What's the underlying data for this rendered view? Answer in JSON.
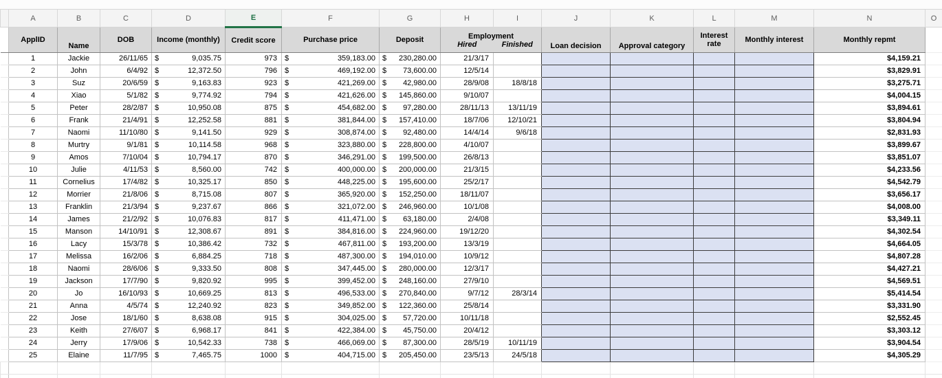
{
  "sheet": {
    "column_letters": [
      "A",
      "B",
      "C",
      "D",
      "E",
      "F",
      "G",
      "H",
      "I",
      "J",
      "K",
      "L",
      "M",
      "N",
      "O"
    ],
    "selected_column": "E",
    "colors": {
      "selection_green": "#217346",
      "header_fill": "#d9d9d9",
      "input_fill": "#dbe1f2"
    },
    "headers": {
      "applid": "ApplID",
      "name": "Name",
      "dob": "DOB",
      "income": "Income (monthly)",
      "credit": "Credit score",
      "price": "Purchase price",
      "deposit": "Deposit",
      "employment": "Employment",
      "hired": "Hired",
      "finished": "Finished",
      "loan_decision": "Loan decision",
      "approval_category": "Approval category",
      "interest_rate": "Interest rate",
      "monthly_interest": "Monthly interest",
      "monthly_repmt": "Monthly repmt"
    },
    "input_columns": [
      "loan_decision",
      "approval_category",
      "interest_rate",
      "monthly_interest"
    ],
    "rows": [
      {
        "id": "1",
        "name": "Jackie",
        "dob": "26/11/65",
        "income": "9,035.75",
        "credit": "973",
        "price": "359,183.00",
        "deposit": "230,280.00",
        "hired": "21/3/17",
        "finished": "",
        "repmt": "$4,159.21"
      },
      {
        "id": "2",
        "name": "John",
        "dob": "6/4/92",
        "income": "12,372.50",
        "credit": "796",
        "price": "469,192.00",
        "deposit": "73,600.00",
        "hired": "12/5/14",
        "finished": "",
        "repmt": "$3,829.91"
      },
      {
        "id": "3",
        "name": "Suz",
        "dob": "20/6/59",
        "income": "9,163.83",
        "credit": "923",
        "price": "421,269.00",
        "deposit": "42,980.00",
        "hired": "28/9/08",
        "finished": "18/8/18",
        "repmt": "$3,275.71"
      },
      {
        "id": "4",
        "name": "Xiao",
        "dob": "5/1/82",
        "income": "9,774.92",
        "credit": "794",
        "price": "421,626.00",
        "deposit": "145,860.00",
        "hired": "9/10/07",
        "finished": "",
        "repmt": "$4,004.15"
      },
      {
        "id": "5",
        "name": "Peter",
        "dob": "28/2/87",
        "income": "10,950.08",
        "credit": "875",
        "price": "454,682.00",
        "deposit": "97,280.00",
        "hired": "28/11/13",
        "finished": "13/11/19",
        "repmt": "$3,894.61"
      },
      {
        "id": "6",
        "name": "Frank",
        "dob": "21/4/91",
        "income": "12,252.58",
        "credit": "881",
        "price": "381,844.00",
        "deposit": "157,410.00",
        "hired": "18/7/06",
        "finished": "12/10/21",
        "repmt": "$3,804.94"
      },
      {
        "id": "7",
        "name": "Naomi",
        "dob": "11/10/80",
        "income": "9,141.50",
        "credit": "929",
        "price": "308,874.00",
        "deposit": "92,480.00",
        "hired": "14/4/14",
        "finished": "9/6/18",
        "repmt": "$2,831.93"
      },
      {
        "id": "8",
        "name": "Murtry",
        "dob": "9/1/81",
        "income": "10,114.58",
        "credit": "968",
        "price": "323,880.00",
        "deposit": "228,800.00",
        "hired": "4/10/07",
        "finished": "",
        "repmt": "$3,899.67"
      },
      {
        "id": "9",
        "name": "Amos",
        "dob": "7/10/04",
        "income": "10,794.17",
        "credit": "870",
        "price": "346,291.00",
        "deposit": "199,500.00",
        "hired": "26/8/13",
        "finished": "",
        "repmt": "$3,851.07"
      },
      {
        "id": "10",
        "name": "Julie",
        "dob": "4/11/53",
        "income": "8,560.00",
        "credit": "742",
        "price": "400,000.00",
        "deposit": "200,000.00",
        "hired": "21/3/15",
        "finished": "",
        "repmt": "$4,233.56"
      },
      {
        "id": "11",
        "name": "Cornelius",
        "dob": "17/4/82",
        "income": "10,325.17",
        "credit": "850",
        "price": "448,225.00",
        "deposit": "195,600.00",
        "hired": "25/2/17",
        "finished": "",
        "repmt": "$4,542.79"
      },
      {
        "id": "12",
        "name": "Morrier",
        "dob": "21/8/06",
        "income": "8,715.08",
        "credit": "807",
        "price": "365,920.00",
        "deposit": "152,250.00",
        "hired": "18/11/07",
        "finished": "",
        "repmt": "$3,656.17"
      },
      {
        "id": "13",
        "name": "Franklin",
        "dob": "21/3/94",
        "income": "9,237.67",
        "credit": "866",
        "price": "321,072.00",
        "deposit": "246,960.00",
        "hired": "10/1/08",
        "finished": "",
        "repmt": "$4,008.00"
      },
      {
        "id": "14",
        "name": "James",
        "dob": "21/2/92",
        "income": "10,076.83",
        "credit": "817",
        "price": "411,471.00",
        "deposit": "63,180.00",
        "hired": "2/4/08",
        "finished": "",
        "repmt": "$3,349.11"
      },
      {
        "id": "15",
        "name": "Manson",
        "dob": "14/10/91",
        "income": "12,308.67",
        "credit": "891",
        "price": "384,816.00",
        "deposit": "224,960.00",
        "hired": "19/12/20",
        "finished": "",
        "repmt": "$4,302.54"
      },
      {
        "id": "16",
        "name": "Lacy",
        "dob": "15/3/78",
        "income": "10,386.42",
        "credit": "732",
        "price": "467,811.00",
        "deposit": "193,200.00",
        "hired": "13/3/19",
        "finished": "",
        "repmt": "$4,664.05"
      },
      {
        "id": "17",
        "name": "Melissa",
        "dob": "16/2/06",
        "income": "6,884.25",
        "credit": "718",
        "price": "487,300.00",
        "deposit": "194,010.00",
        "hired": "10/9/12",
        "finished": "",
        "repmt": "$4,807.28"
      },
      {
        "id": "18",
        "name": "Naomi",
        "dob": "28/6/06",
        "income": "9,333.50",
        "credit": "808",
        "price": "347,445.00",
        "deposit": "280,000.00",
        "hired": "12/3/17",
        "finished": "",
        "repmt": "$4,427.21"
      },
      {
        "id": "19",
        "name": "Jackson",
        "dob": "17/7/90",
        "income": "9,820.92",
        "credit": "995",
        "price": "399,452.00",
        "deposit": "248,160.00",
        "hired": "27/9/10",
        "finished": "",
        "repmt": "$4,569.51"
      },
      {
        "id": "20",
        "name": "Jo",
        "dob": "16/10/93",
        "income": "10,669.25",
        "credit": "813",
        "price": "496,533.00",
        "deposit": "270,840.00",
        "hired": "9/7/12",
        "finished": "28/3/14",
        "repmt": "$5,414.54"
      },
      {
        "id": "21",
        "name": "Anna",
        "dob": "4/5/74",
        "income": "12,240.92",
        "credit": "823",
        "price": "349,852.00",
        "deposit": "122,360.00",
        "hired": "25/8/14",
        "finished": "",
        "repmt": "$3,331.90"
      },
      {
        "id": "22",
        "name": "Jose",
        "dob": "18/1/60",
        "income": "8,638.08",
        "credit": "915",
        "price": "304,025.00",
        "deposit": "57,720.00",
        "hired": "10/11/18",
        "finished": "",
        "repmt": "$2,552.45"
      },
      {
        "id": "23",
        "name": "Keith",
        "dob": "27/6/07",
        "income": "6,968.17",
        "credit": "841",
        "price": "422,384.00",
        "deposit": "45,750.00",
        "hired": "20/4/12",
        "finished": "",
        "repmt": "$3,303.12"
      },
      {
        "id": "24",
        "name": "Jerry",
        "dob": "17/9/06",
        "income": "10,542.33",
        "credit": "738",
        "price": "466,069.00",
        "deposit": "87,300.00",
        "hired": "28/5/19",
        "finished": "10/11/19",
        "repmt": "$3,904.54"
      },
      {
        "id": "25",
        "name": "Elaine",
        "dob": "11/7/95",
        "income": "7,465.75",
        "credit": "1000",
        "price": "404,715.00",
        "deposit": "205,450.00",
        "hired": "23/5/13",
        "finished": "24/5/18",
        "repmt": "$4,305.29"
      }
    ]
  }
}
